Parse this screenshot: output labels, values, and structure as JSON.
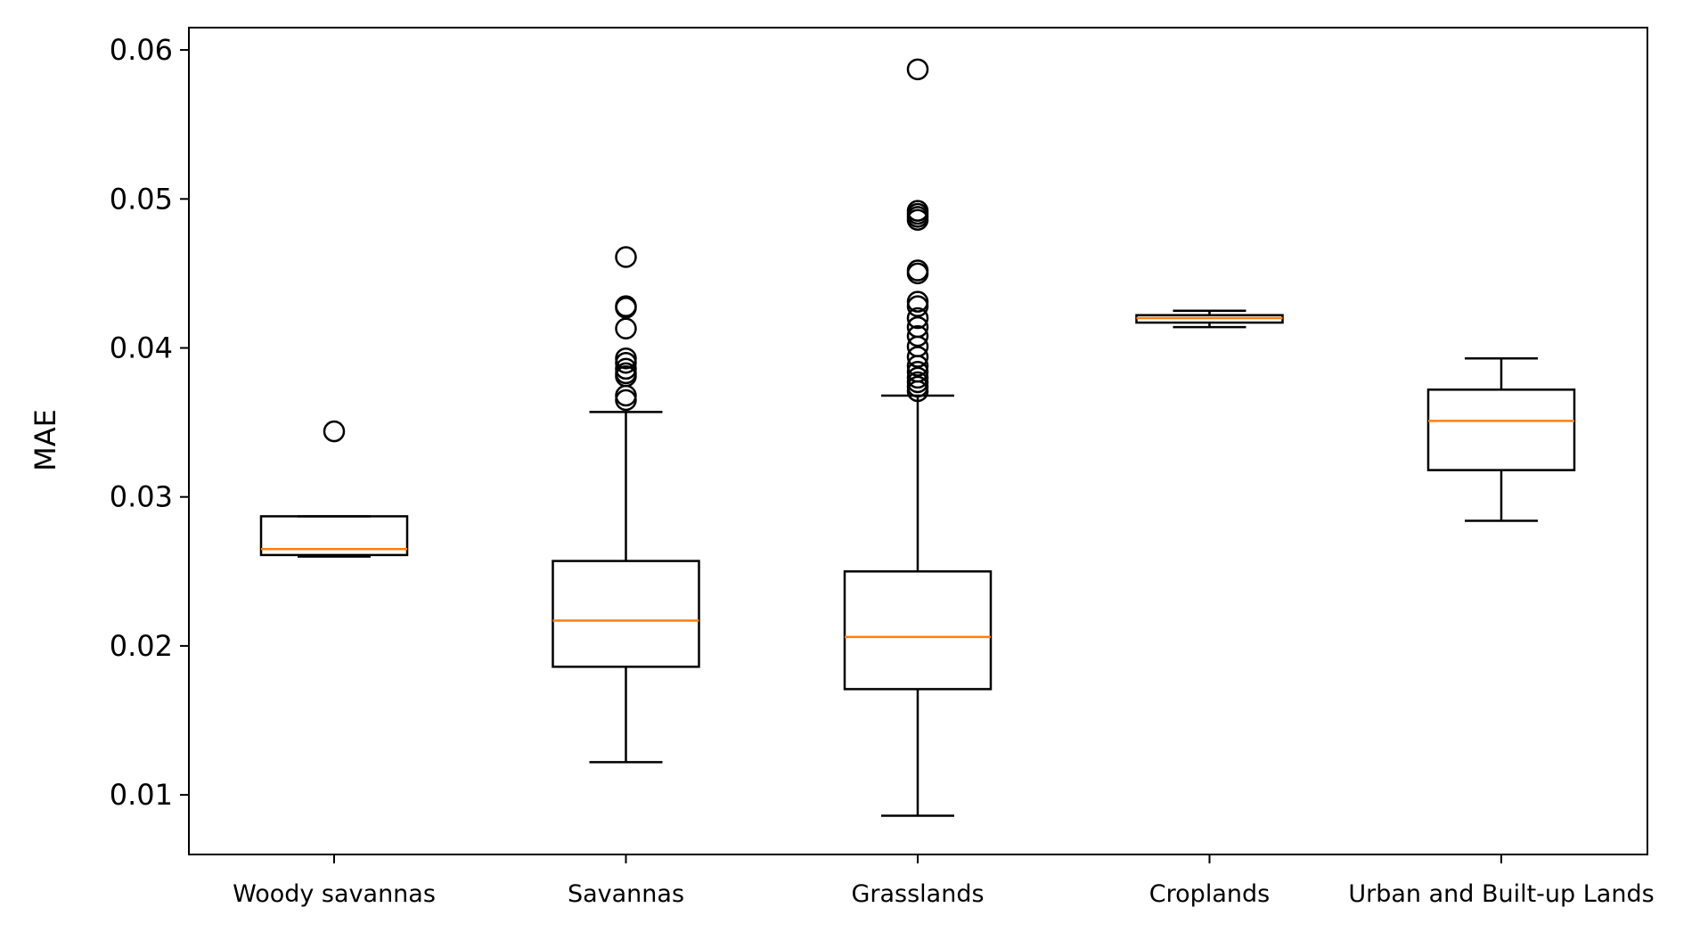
{
  "chart_data": {
    "type": "box",
    "title": "",
    "xlabel": "",
    "ylabel": "MAE",
    "ylim": [
      0.006,
      0.0615
    ],
    "yticks": [
      0.01,
      0.02,
      0.03,
      0.04,
      0.05,
      0.06
    ],
    "ytick_labels": [
      "0.01",
      "0.02",
      "0.03",
      "0.04",
      "0.05",
      "0.06"
    ],
    "grid": false,
    "colors": {
      "box": "#000000",
      "median": "#ff7f0e",
      "background": "#ffffff"
    },
    "categories": [
      "Woody savannas",
      "Savannas",
      "Grasslands",
      "Croplands",
      "Urban and Built-up Lands"
    ],
    "boxes": [
      {
        "category": "Woody savannas",
        "whisker_low": 0.026,
        "q1": 0.0261,
        "median": 0.0265,
        "q3": 0.0287,
        "whisker_high": 0.0287,
        "outliers": [
          0.0344
        ]
      },
      {
        "category": "Savannas",
        "whisker_low": 0.0122,
        "q1": 0.0186,
        "median": 0.0217,
        "q3": 0.0257,
        "whisker_high": 0.0357,
        "outliers": [
          0.0461,
          0.0428,
          0.0427,
          0.0413,
          0.0393,
          0.039,
          0.0386,
          0.0383,
          0.0381,
          0.0368,
          0.0365
        ]
      },
      {
        "category": "Grasslands",
        "whisker_low": 0.0086,
        "q1": 0.0171,
        "median": 0.0206,
        "q3": 0.025,
        "whisker_high": 0.0368,
        "outliers": [
          0.0587,
          0.0492,
          0.049,
          0.0488,
          0.0486,
          0.0452,
          0.045,
          0.0431,
          0.0428,
          0.042,
          0.0414,
          0.0408,
          0.0401,
          0.0394,
          0.0388,
          0.0384,
          0.038,
          0.0377,
          0.0374,
          0.0371
        ]
      },
      {
        "category": "Croplands",
        "whisker_low": 0.0414,
        "q1": 0.0417,
        "median": 0.042,
        "q3": 0.0422,
        "whisker_high": 0.0425,
        "outliers": []
      },
      {
        "category": "Urban and Built-up Lands",
        "whisker_low": 0.0284,
        "q1": 0.0318,
        "median": 0.0351,
        "q3": 0.0372,
        "whisker_high": 0.0393,
        "outliers": []
      }
    ]
  }
}
